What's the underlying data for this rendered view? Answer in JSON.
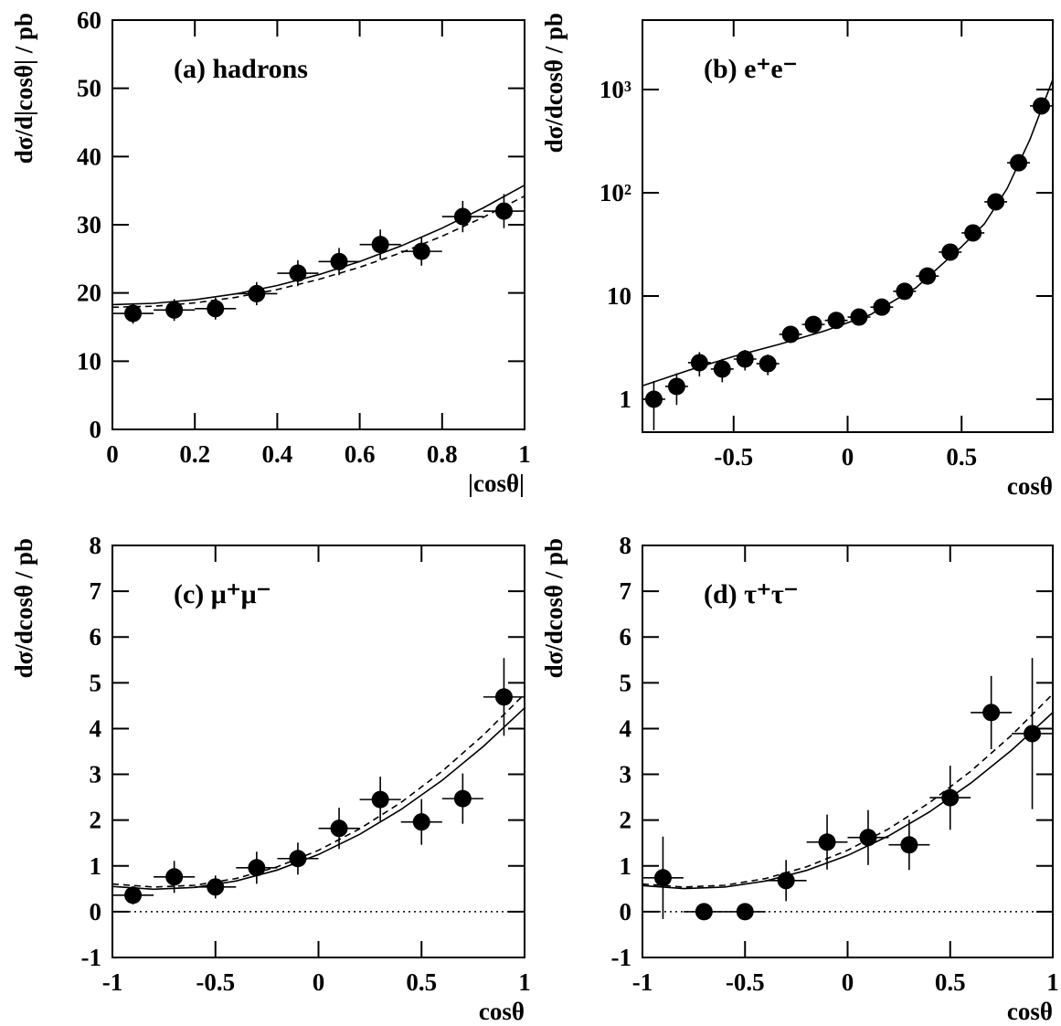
{
  "chart_data": [
    {
      "type": "scatter",
      "label": "(a) hadrons",
      "xlabel": "|cosθ|",
      "ylabel": "dσ/d|cosθ| / pb",
      "color": "#000000",
      "xlim": [
        0,
        1
      ],
      "ylim": [
        0,
        60
      ],
      "log_y": false,
      "zero_line": false,
      "xticks": [
        0,
        0.2,
        0.4,
        0.6,
        0.8,
        1
      ],
      "yticks": [
        0,
        10,
        20,
        30,
        40,
        50,
        60
      ],
      "x": [
        0.05,
        0.15,
        0.25,
        0.35,
        0.45,
        0.55,
        0.65,
        0.75,
        0.85,
        0.95
      ],
      "values": [
        17.0,
        17.5,
        17.7,
        19.9,
        22.9,
        24.6,
        27.1,
        26.1,
        31.2,
        32.0
      ],
      "errors": [
        1.5,
        1.6,
        1.6,
        1.7,
        1.9,
        2.0,
        2.2,
        2.1,
        2.3,
        2.5
      ],
      "xerr": 0.05,
      "curves": [
        {
          "dashed": false,
          "x": [
            0,
            0.1,
            0.2,
            0.3,
            0.4,
            0.5,
            0.6,
            0.7,
            0.8,
            0.9,
            1
          ],
          "values": [
            18.3,
            18.48,
            19.0,
            19.88,
            21.1,
            22.68,
            24.6,
            26.88,
            29.5,
            32.48,
            35.8
          ]
        },
        {
          "dashed": true,
          "x": [
            0,
            0.1,
            0.2,
            0.3,
            0.4,
            0.5,
            0.6,
            0.7,
            0.8,
            0.9,
            1
          ],
          "values": [
            17.9,
            18.06,
            18.55,
            19.37,
            20.51,
            21.98,
            23.77,
            25.89,
            28.33,
            31.1,
            34.2
          ]
        }
      ]
    },
    {
      "type": "scatter",
      "label": "(b) e⁺e⁻",
      "xlabel": "cosθ",
      "ylabel": "dσ/dcosθ / pb",
      "color": "#000000",
      "xlim": [
        -0.9,
        0.9
      ],
      "ylim": [
        0.48,
        4700
      ],
      "log_y": true,
      "zero_line": false,
      "xticks": [
        -0.5,
        0,
        0.5
      ],
      "yticks": [
        1,
        10,
        {
          "value": 100,
          "label": "10²"
        },
        {
          "value": 1000,
          "label": "10³"
        }
      ],
      "x": [
        -0.85,
        -0.75,
        -0.65,
        -0.55,
        -0.45,
        -0.35,
        -0.25,
        -0.15,
        -0.05,
        0.05,
        0.15,
        0.25,
        0.35,
        0.45,
        0.55,
        0.65,
        0.75,
        0.85
      ],
      "values": [
        1.0,
        1.33,
        2.26,
        1.96,
        2.45,
        2.21,
        4.25,
        5.3,
        5.8,
        6.25,
        7.8,
        11.1,
        15.6,
        26.6,
        40.8,
        81.6,
        195,
        693
      ],
      "errors": [
        0.5,
        0.45,
        0.6,
        0.5,
        0.55,
        0.5,
        0.5,
        0.5,
        0.5,
        0.5,
        0.6,
        0.8,
        1.2,
        2,
        3,
        5,
        10,
        25
      ],
      "xerr": 0.05,
      "curves": [
        {
          "dashed": false,
          "x": [
            -0.9,
            -0.7,
            -0.5,
            -0.3,
            -0.1,
            0.1,
            0.3,
            0.5,
            0.6,
            0.7,
            0.8,
            0.9
          ],
          "values": [
            1.35,
            1.9,
            2.6,
            3.4,
            4.6,
            6.6,
            12,
            30,
            50,
            110,
            330,
            1250
          ]
        }
      ]
    },
    {
      "type": "scatter",
      "label": "(c) μ⁺μ⁻",
      "xlabel": "cosθ",
      "ylabel": "dσ/dcosθ / pb",
      "color": "#000000",
      "xlim": [
        -1,
        1
      ],
      "ylim": [
        -1,
        8
      ],
      "log_y": false,
      "zero_line": true,
      "xticks": [
        -1,
        -0.5,
        0,
        0.5,
        1
      ],
      "yticks": [
        -1,
        0,
        1,
        2,
        3,
        4,
        5,
        6,
        7,
        8
      ],
      "x": [
        -0.9,
        -0.7,
        -0.5,
        -0.3,
        -0.1,
        0.1,
        0.3,
        0.5,
        0.7,
        0.9
      ],
      "values": [
        0.36,
        0.76,
        0.54,
        0.96,
        1.16,
        1.82,
        2.45,
        1.96,
        2.47,
        4.69
      ],
      "errors": [
        0.2,
        0.35,
        0.25,
        0.35,
        0.35,
        0.45,
        0.5,
        0.5,
        0.55,
        0.85
      ],
      "xerr": 0.1,
      "curves": [
        {
          "dashed": false,
          "x": [
            -1,
            -0.8,
            -0.6,
            -0.4,
            -0.2,
            0,
            0.2,
            0.4,
            0.6,
            0.8,
            1
          ],
          "values": [
            0.55,
            0.49,
            0.53,
            0.67,
            0.91,
            1.25,
            1.69,
            2.23,
            2.87,
            3.61,
            4.45
          ]
        },
        {
          "dashed": true,
          "x": [
            -1,
            -0.8,
            -0.6,
            -0.4,
            -0.2,
            0,
            0.2,
            0.4,
            0.6,
            0.8,
            1
          ],
          "values": [
            0.605,
            0.538,
            0.577,
            0.724,
            0.979,
            1.34,
            1.809,
            2.384,
            3.067,
            3.858,
            4.755
          ]
        }
      ]
    },
    {
      "type": "scatter",
      "label": "(d) τ⁺τ⁻",
      "xlabel": "cosθ",
      "ylabel": "dσ/dcosθ / pb",
      "color": "#000000",
      "xlim": [
        -1,
        1
      ],
      "ylim": [
        -1,
        8
      ],
      "log_y": false,
      "zero_line": true,
      "xticks": [
        -1,
        -0.5,
        0,
        0.5,
        1
      ],
      "yticks": [
        -1,
        0,
        1,
        2,
        3,
        4,
        5,
        6,
        7,
        8
      ],
      "x": [
        -0.9,
        -0.7,
        -0.5,
        -0.3,
        -0.1,
        0.1,
        0.3,
        0.5,
        0.7,
        0.9
      ],
      "values": [
        0.74,
        0,
        0,
        0.68,
        1.52,
        1.62,
        1.46,
        2.49,
        4.35,
        3.89
      ],
      "errors": [
        0.9,
        0,
        0,
        0.45,
        0.6,
        0.6,
        0.55,
        0.7,
        0.8,
        1.65
      ],
      "xerr": 0.1,
      "curves": [
        {
          "dashed": false,
          "x": [
            -1,
            -0.8,
            -0.6,
            -0.4,
            -0.2,
            0,
            0.2,
            0.4,
            0.6,
            0.8,
            1
          ],
          "values": [
            0.57,
            0.505,
            0.539,
            0.671,
            0.901,
            1.23,
            1.657,
            2.183,
            2.807,
            3.529,
            4.35
          ]
        },
        {
          "dashed": true,
          "x": [
            -1,
            -0.8,
            -0.6,
            -0.4,
            -0.2,
            0,
            0.2,
            0.4,
            0.6,
            0.8,
            1
          ],
          "values": [
            0.605,
            0.538,
            0.577,
            0.724,
            0.979,
            1.34,
            1.809,
            2.384,
            3.067,
            3.858,
            4.755
          ]
        }
      ]
    }
  ]
}
